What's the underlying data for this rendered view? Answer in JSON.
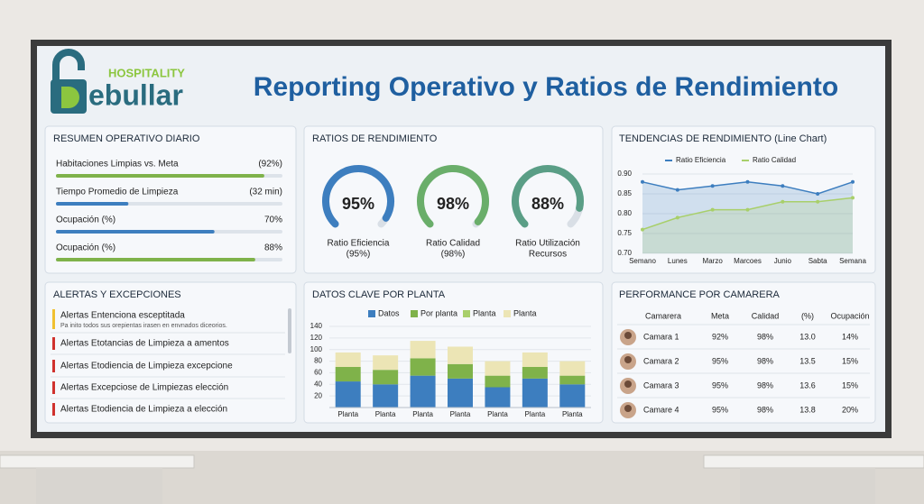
{
  "header": {
    "brand_small": "HOSPITALITY",
    "brand": "ebullar",
    "title": "Reporting Operativo y Ratios de Rendimiento"
  },
  "resumen": {
    "title": "RESUMEN OPERATIVO DIARIO",
    "xlim": [
      0,
      100
    ],
    "items": [
      {
        "label": "Habitaciones Limpias vs. Meta",
        "value": 92,
        "value_label": "(92%)",
        "color": "#7fb24a"
      },
      {
        "label": "Tiempo Promedio de Limpieza",
        "value": 32,
        "value_label": "(32 min)",
        "color": "#3d7ebf"
      },
      {
        "label": "Ocupación (%)",
        "value": 70,
        "value_label": "70%",
        "color": "#3d7ebf"
      },
      {
        "label": "Ocupación (%)",
        "value": 88,
        "value_label": "88%",
        "color": "#7fb24a"
      }
    ]
  },
  "ratios": {
    "title": "RATIOS DE RENDIMIENTO",
    "lim": [
      0,
      100
    ],
    "gauges": [
      {
        "value": 95,
        "value_label": "95%",
        "label": "Ratio Eficiencia",
        "detail": "(95%)",
        "color": "#3d7ebf"
      },
      {
        "value": 98,
        "value_label": "98%",
        "label": "Ratio Calidad",
        "detail": "(98%)",
        "color": "#6aae6a"
      },
      {
        "value": 88,
        "value_label": "88%",
        "label": "Ratio Utilización",
        "detail": "Recursos",
        "color": "#5a9e86"
      }
    ]
  },
  "chart_data": [
    {
      "type": "line",
      "title": "TENDENCIAS DE RENDIMIENTO (Line Chart)",
      "categories": [
        "Semano",
        "Lunes",
        "Marzo",
        "Marcoes",
        "Junio",
        "Sabta",
        "Semana"
      ],
      "series": [
        {
          "name": "Ratio Eficiencia",
          "color": "#3d7ebf",
          "values": [
            0.88,
            0.86,
            0.87,
            0.88,
            0.87,
            0.85,
            0.88
          ]
        },
        {
          "name": "Ratio Calidad",
          "color": "#a8cf6a",
          "values": [
            0.76,
            0.79,
            0.81,
            0.81,
            0.83,
            0.83,
            0.84
          ]
        }
      ],
      "ylim": [
        0.7,
        0.9
      ],
      "yticks": [
        {
          "value": 0.7,
          "label": "0.70"
        },
        {
          "value": 0.75,
          "label": "0.75"
        },
        {
          "value": 0.8,
          "label": "0.80"
        },
        {
          "value": 0.85,
          "label": "0.85"
        },
        {
          "value": 0.9,
          "label": "0.90"
        }
      ],
      "grid": true
    },
    {
      "type": "stacked-bar",
      "title": "DATOS CLAVE POR PLANTA",
      "categories": [
        "Planta",
        "Planta",
        "Planta",
        "Planta",
        "Planta",
        "Planta",
        "Planta"
      ],
      "series": [
        {
          "name": "Datos",
          "color": "#3d7ebf",
          "values": [
            45,
            40,
            55,
            50,
            35,
            50,
            40
          ]
        },
        {
          "name": "Por planta",
          "color": "#7fb24a",
          "values": [
            25,
            25,
            30,
            25,
            20,
            20,
            15
          ]
        },
        {
          "name": "Planta",
          "color": "#a8cf6a",
          "values": [
            null,
            null,
            null,
            null,
            null,
            null,
            null
          ]
        },
        {
          "name": "Planta",
          "color": "#ece5b5",
          "values": [
            25,
            25,
            30,
            30,
            25,
            25,
            25
          ]
        }
      ],
      "ylim": [
        0,
        140
      ],
      "yticks": [
        20,
        40,
        60,
        80,
        100,
        120,
        140
      ],
      "grid": true
    }
  ],
  "alerts": {
    "title": "ALERTAS Y EXCEPCIONES",
    "items": [
      {
        "text": "Alertas Entenciona esceptitada",
        "detail": "Pa inito todos sus orepientas irasen en envnados diceorios.",
        "color": "#f0c030"
      },
      {
        "text": "Alertas Etotancias de Limpieza a amentos",
        "color": "#d0312d"
      },
      {
        "text": "Alertas Etodiencia de Limpieza excepcione",
        "color": "#d0312d"
      },
      {
        "text": "Alertas Excepciose de Limpiezas elección",
        "color": "#d0312d"
      },
      {
        "text": "Alertas Etodiencia de Limpieza a elección",
        "color": "#d0312d"
      }
    ]
  },
  "table": {
    "title": "PERFORMANCE POR CAMARERA",
    "columns": [
      "Camarera",
      "Meta",
      "Calidad",
      "(%)",
      "Ocupación"
    ],
    "rows": [
      [
        "Camara 1",
        "92%",
        "98%",
        "13.0",
        "14%"
      ],
      [
        "Camara 2",
        "95%",
        "98%",
        "13.5",
        "15%"
      ],
      [
        "Camara 3",
        "95%",
        "98%",
        "13.6",
        "15%"
      ],
      [
        "Camare 4",
        "95%",
        "98%",
        "13.8",
        "20%"
      ]
    ]
  }
}
